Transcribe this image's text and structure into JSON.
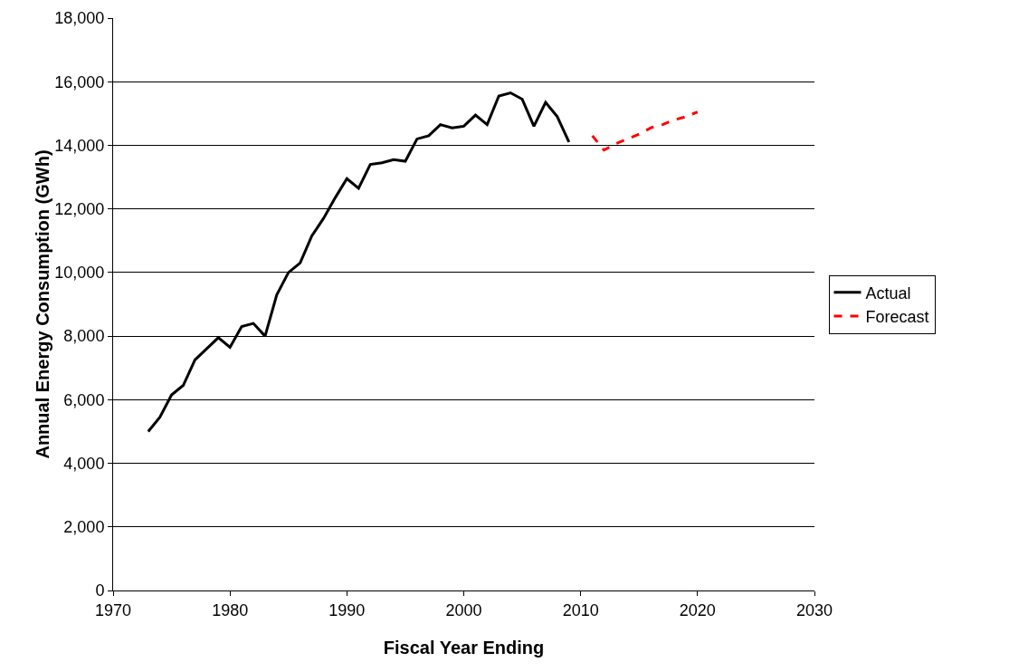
{
  "chart_data": {
    "type": "line",
    "xlabel": "Fiscal Year Ending",
    "ylabel": "Annual Energy Consumption (GWh)",
    "xlim": [
      1970,
      2030
    ],
    "xticks": [
      1970,
      1980,
      1990,
      2000,
      2010,
      2020,
      2030
    ],
    "ylim": [
      0,
      18000
    ],
    "yticks": [
      {
        "value": 0,
        "label": "0"
      },
      {
        "value": 2000,
        "label": "2,000"
      },
      {
        "value": 4000,
        "label": "4,000"
      },
      {
        "value": 6000,
        "label": "6,000"
      },
      {
        "value": 8000,
        "label": "8,000"
      },
      {
        "value": 10000,
        "label": "10,000"
      },
      {
        "value": 12000,
        "label": "12,000"
      },
      {
        "value": 14000,
        "label": "14,000"
      },
      {
        "value": 16000,
        "label": "16,000"
      },
      {
        "value": 18000,
        "label": "18,000"
      }
    ],
    "grid": "y",
    "legend": "right",
    "marker": "none",
    "series": [
      {
        "name": "Actual",
        "color": "#000000",
        "line_style": "solid",
        "x": [
          1973,
          1974,
          1975,
          1976,
          1977,
          1978,
          1979,
          1980,
          1981,
          1982,
          1983,
          1984,
          1985,
          1986,
          1987,
          1988,
          1989,
          1990,
          1991,
          1992,
          1993,
          1994,
          1995,
          1996,
          1997,
          1998,
          1999,
          2000,
          2001,
          2002,
          2003,
          2004,
          2005,
          2006,
          2007,
          2008,
          2009
        ],
        "values": [
          5000,
          5450,
          6150,
          6450,
          7250,
          7600,
          7950,
          7650,
          8300,
          8400,
          8000,
          9300,
          10000,
          10300,
          11150,
          11700,
          12350,
          12950,
          12650,
          13400,
          13450,
          13550,
          13500,
          14200,
          14300,
          14650,
          14550,
          14600,
          14950,
          14650,
          15550,
          15650,
          15450,
          14600,
          15350,
          14900,
          14100
        ]
      },
      {
        "name": "Forecast",
        "color": "#ff0000",
        "line_style": "dashed",
        "x": [
          2011,
          2012,
          2013,
          2014,
          2015,
          2016,
          2017,
          2018,
          2019,
          2020
        ],
        "values": [
          14300,
          13850,
          14050,
          14200,
          14350,
          14550,
          14650,
          14800,
          14900,
          15050
        ]
      }
    ]
  }
}
